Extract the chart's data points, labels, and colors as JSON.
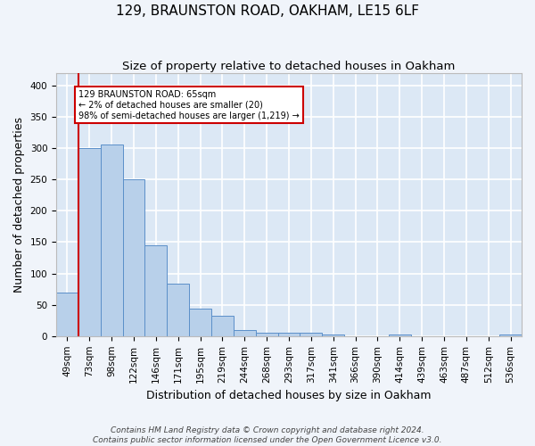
{
  "title": "129, BRAUNSTON ROAD, OAKHAM, LE15 6LF",
  "subtitle": "Size of property relative to detached houses in Oakham",
  "xlabel": "Distribution of detached houses by size in Oakham",
  "ylabel": "Number of detached properties",
  "footer_line1": "Contains HM Land Registry data © Crown copyright and database right 2024.",
  "footer_line2": "Contains public sector information licensed under the Open Government Licence v3.0.",
  "bar_labels": [
    "49sqm",
    "73sqm",
    "98sqm",
    "122sqm",
    "146sqm",
    "171sqm",
    "195sqm",
    "219sqm",
    "244sqm",
    "268sqm",
    "293sqm",
    "317sqm",
    "341sqm",
    "366sqm",
    "390sqm",
    "414sqm",
    "439sqm",
    "463sqm",
    "487sqm",
    "512sqm",
    "536sqm"
  ],
  "bar_values": [
    70,
    300,
    305,
    250,
    145,
    83,
    44,
    33,
    9,
    5,
    5,
    5,
    2,
    0,
    0,
    3,
    0,
    0,
    0,
    0,
    3
  ],
  "bar_color": "#b8d0ea",
  "bar_edge_color": "#5b8fc9",
  "background_color": "#dce8f5",
  "fig_background_color": "#f0f4fa",
  "grid_color": "#ffffff",
  "annotation_text": "129 BRAUNSTON ROAD: 65sqm\n← 2% of detached houses are smaller (20)\n98% of semi-detached houses are larger (1,219) →",
  "annotation_box_color": "#ffffff",
  "annotation_border_color": "#cc0000",
  "marker_line_color": "#cc0000",
  "ylim": [
    0,
    420
  ],
  "yticks": [
    0,
    50,
    100,
    150,
    200,
    250,
    300,
    350,
    400
  ],
  "title_fontsize": 11,
  "subtitle_fontsize": 9.5,
  "ylabel_fontsize": 9,
  "xlabel_fontsize": 9,
  "tick_fontsize": 7.5,
  "footer_fontsize": 6.5
}
